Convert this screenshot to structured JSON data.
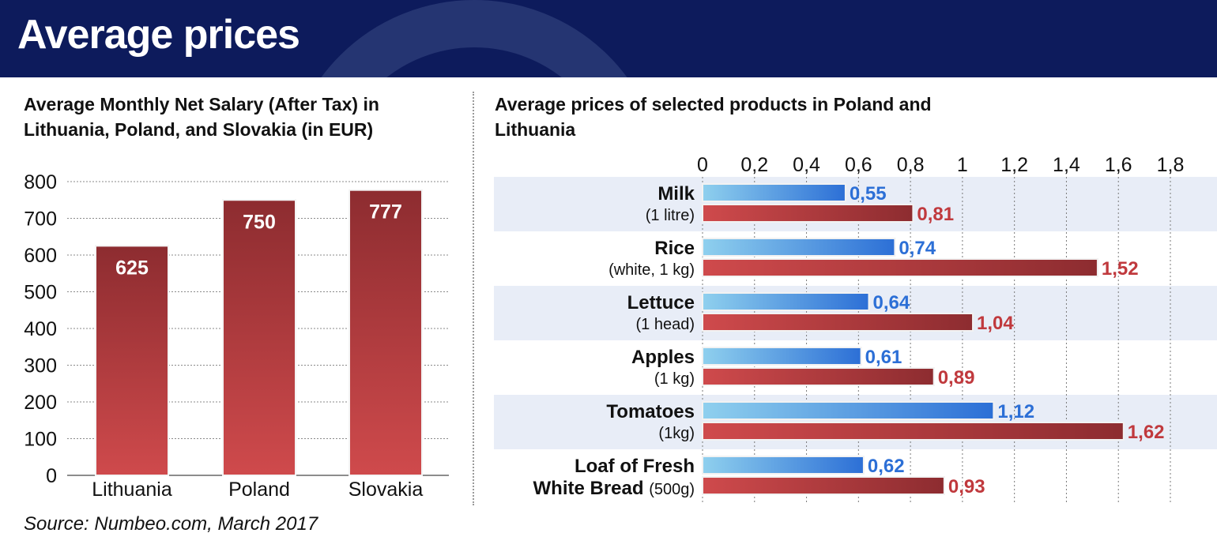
{
  "header": {
    "title": "Average prices"
  },
  "source": "Source: Numbeo.com, March 2017",
  "colors": {
    "header_bg": "#0d1b5c",
    "lithuania_red": "#c0393d",
    "poland_blue": "#2c6fd6",
    "band_bg": "#e8edf7",
    "salary_bar": "#a63436"
  },
  "chart_data": [
    {
      "type": "bar",
      "title": "Average Monthly Net Salary (After Tax) in Lithuania, Poland, and Slovakia (in EUR)",
      "categories": [
        "Lithuania",
        "Poland",
        "Slovakia"
      ],
      "values": [
        625,
        750,
        777
      ],
      "ylim": [
        0,
        800
      ],
      "yticks": [
        0,
        100,
        200,
        300,
        400,
        500,
        600,
        700,
        800
      ],
      "grid": true
    },
    {
      "type": "bar",
      "orientation": "horizontal",
      "title": "Average prices of selected products in Poland and Lithuania",
      "categories": [
        {
          "name": "Milk",
          "detail": "(1 litre)"
        },
        {
          "name": "Rice",
          "detail": "(white, 1 kg)"
        },
        {
          "name": "Lettuce",
          "detail": "(1 head)"
        },
        {
          "name": "Apples",
          "detail": "(1 kg)"
        },
        {
          "name": "Tomatoes",
          "detail": "(1kg)"
        },
        {
          "name": "Loaf of Fresh",
          "name2": "White Bread",
          "detail": "(500g)"
        }
      ],
      "series": [
        {
          "color": "#2c6fd6",
          "values": [
            0.55,
            0.74,
            0.64,
            0.61,
            1.12,
            0.62
          ]
        },
        {
          "color": "#c0393d",
          "values": [
            0.81,
            1.52,
            1.04,
            0.89,
            1.62,
            0.93
          ]
        }
      ],
      "value_labels": {
        "blue": [
          "0,55",
          "0,74",
          "0,64",
          "0,61",
          "1,12",
          "0,62"
        ],
        "red": [
          "0,81",
          "1,52",
          "1,04",
          "0,89",
          "1,62",
          "0,93"
        ]
      },
      "xlim": [
        0,
        1.8
      ],
      "xticks": [
        "0",
        "0,2",
        "0,4",
        "0,6",
        "0,8",
        "1",
        "1,2",
        "1,4",
        "1,6",
        "1,8"
      ],
      "xtick_values": [
        0,
        0.2,
        0.4,
        0.6,
        0.8,
        1.0,
        1.2,
        1.4,
        1.6,
        1.8
      ],
      "axis_position": "top",
      "grid": true
    }
  ]
}
